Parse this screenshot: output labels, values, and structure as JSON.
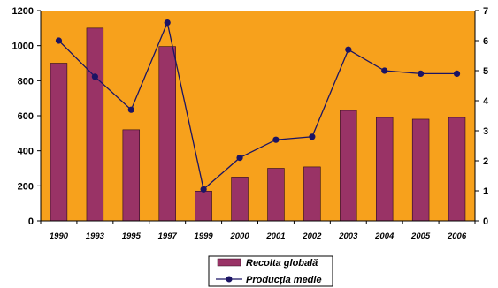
{
  "chart_data": {
    "type": "bar+line",
    "categories": [
      "1990",
      "1993",
      "1995",
      "1997",
      "1999",
      "2000",
      "2001",
      "2002",
      "2003",
      "2004",
      "2005",
      "2006"
    ],
    "series": [
      {
        "name": "Recolta globală",
        "type": "bar",
        "axis": "left",
        "values": [
          900,
          1100,
          520,
          995,
          170,
          250,
          300,
          308,
          630,
          590,
          580,
          590
        ]
      },
      {
        "name": "Producţia medie",
        "type": "line",
        "axis": "right",
        "values": [
          6.0,
          4.8,
          3.7,
          6.6,
          1.05,
          2.1,
          2.7,
          2.8,
          5.7,
          5.0,
          4.9,
          4.9
        ]
      }
    ],
    "y_left": {
      "lim": [
        0,
        1200
      ],
      "ticks": [
        "0",
        "200",
        "400",
        "600",
        "800",
        "1000",
        "1200"
      ]
    },
    "y_right": {
      "lim": [
        0,
        7
      ],
      "ticks": [
        "0",
        "1",
        "2",
        "3",
        "4",
        "5",
        "6",
        "7"
      ]
    },
    "legend_position": "bottom-center",
    "grid": false,
    "colors": {
      "plot_background": "#F7A11C",
      "bar": "#993366",
      "line": "#1B1464",
      "axis": "#000000"
    }
  }
}
